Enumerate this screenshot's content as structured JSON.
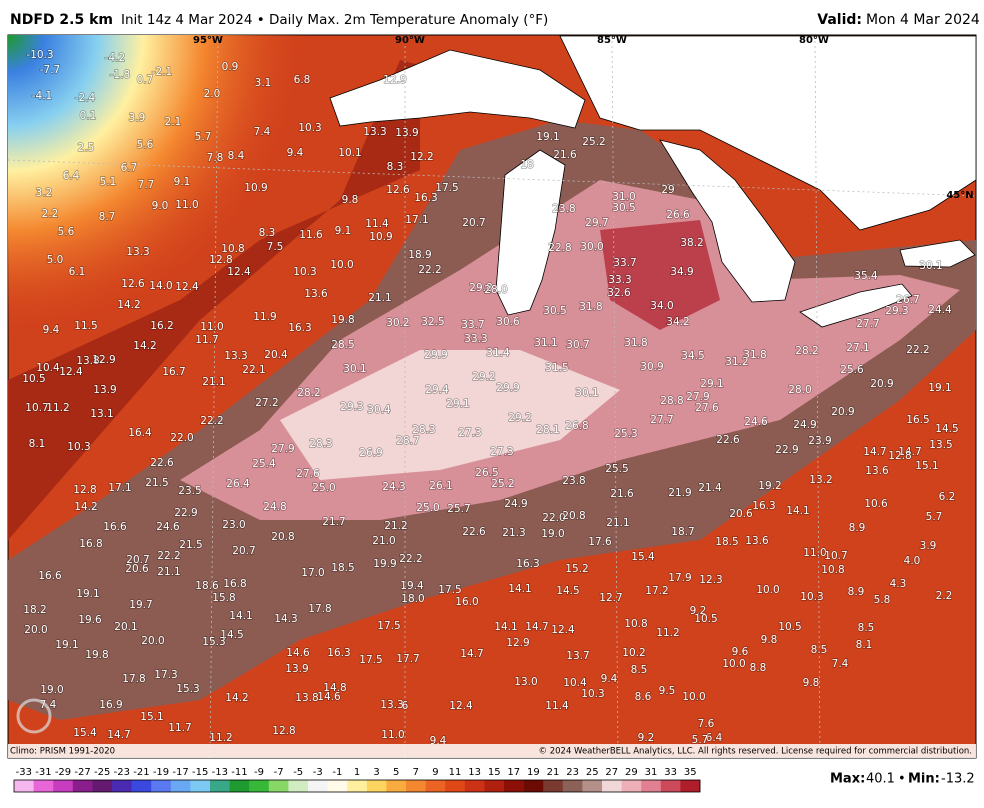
{
  "header": {
    "product": "NDFD 2.5 km",
    "description": "Init 14z 4 Mar 2024 • Daily Max. 2m Temperature Anomaly (°F)",
    "valid_label": "Valid:",
    "valid": "Mon 4 Mar 2024"
  },
  "map": {
    "lon_labels": [
      "95°W",
      "90°W",
      "85°W",
      "80°W"
    ],
    "lat_labels": [
      "45°N"
    ],
    "stations": [
      "-10.3",
      "-7.7",
      "-4.2",
      "-1.8",
      "0.7",
      "-2.1",
      "-4.1",
      "-2.4",
      "0.1",
      "3.9",
      "2.1",
      "2.5",
      "5.6",
      "5.7",
      "0.9",
      "2.0",
      "3.1",
      "6.8",
      "12.9",
      "7.4",
      "7.8",
      "8.4",
      "9.4",
      "10.3",
      "10.1",
      "13.3",
      "13.9",
      "12.2",
      "8.3",
      "6.4",
      "5.1",
      "6.7",
      "7.7",
      "9.1",
      "3.2",
      "2.2",
      "5.6",
      "8.7",
      "9.0",
      "11.0",
      "10.9",
      "9.8",
      "12.6",
      "16.3",
      "17.5",
      "20.7",
      "17.1",
      "11.4",
      "10.9",
      "9.1",
      "11.6",
      "8.3",
      "7.5",
      "10.8",
      "12.8",
      "12.4",
      "13.3",
      "5.0",
      "6.1",
      "12.6",
      "14.0",
      "12.4",
      "10.3",
      "10.0",
      "18.9",
      "22.2",
      "13.6",
      "21.1",
      "14.2",
      "9.4",
      "11.5",
      "16.2",
      "11.0",
      "11.7",
      "11.9",
      "16.3",
      "19.8",
      "30.2",
      "32.5",
      "33.7",
      "33.3",
      "29.8",
      "28.0",
      "30.6",
      "30.5",
      "31.8",
      "32.6",
      "34.0",
      "34.2",
      "33.3",
      "33.7",
      "34.9",
      "38.2",
      "30.0",
      "22.8",
      "29.7",
      "30.5",
      "31.0",
      "23.8",
      "26.6",
      "29",
      "25.2",
      "21.6",
      "19.1",
      "18",
      "35.4",
      "30.1",
      "26.7",
      "24.4",
      "29.3",
      "27.7",
      "27.1",
      "28.2",
      "22.2",
      "25.6",
      "20.9",
      "19.1",
      "28.0",
      "31.8",
      "31.2",
      "34.5",
      "31.8",
      "30.7",
      "31.1",
      "31.4",
      "31.5",
      "29.9",
      "28.5",
      "30.1",
      "29.2",
      "29.4",
      "29.9",
      "30.1",
      "30.9",
      "29.1",
      "27.9",
      "27.6",
      "28.8",
      "27.7",
      "29.1",
      "30.4",
      "29.3",
      "28.2",
      "27.2",
      "21.1",
      "22.1",
      "20.4",
      "13.3",
      "16.7",
      "14.2",
      "10.4",
      "12.4",
      "13.8",
      "12.9",
      "10.5",
      "13.9",
      "10.7",
      "11.2",
      "13.1",
      "22.2",
      "16.4",
      "22.0",
      "29.2",
      "28.1",
      "26.8",
      "27.3",
      "28.3",
      "28.7",
      "28.3",
      "27.9",
      "26.9",
      "27.3",
      "25.3",
      "22.6",
      "24.6",
      "24.9",
      "20.9",
      "23.9",
      "22.9",
      "16.5",
      "14.5",
      "14.7",
      "14.7",
      "12.8",
      "13.5",
      "13.6",
      "15.1",
      "8.1",
      "10.3",
      "22.6",
      "25.4",
      "25.5",
      "26.5",
      "25.2",
      "23.8",
      "13.2",
      "19.2",
      "12.8",
      "17.1",
      "21.5",
      "23.5",
      "26.4",
      "27.6",
      "25.0",
      "24.3",
      "26.1",
      "21.6",
      "21.9",
      "21.4",
      "24.9",
      "25.0",
      "25.7",
      "10.6",
      "6.2",
      "14.2",
      "22.9",
      "24.8",
      "16.3",
      "20.6",
      "14.1",
      "5.7",
      "16.6",
      "24.6",
      "23.0",
      "21.7",
      "21.2",
      "22.0",
      "20.8",
      "21.1",
      "8.9",
      "22.6",
      "21.3",
      "19.0",
      "18.7",
      "20.8",
      "21.0",
      "17.6",
      "18.5",
      "13.6",
      "3.9",
      "16.8",
      "21.5",
      "20.7",
      "11.0",
      "10.7",
      "4.0",
      "20.7",
      "22.2",
      "15.4",
      "17.0",
      "18.5",
      "19.9",
      "22.2",
      "16.3",
      "15.2",
      "10.8",
      "20.6",
      "21.1",
      "16.6",
      "17.9",
      "12.3",
      "4.3",
      "18.6",
      "16.8",
      "19.4",
      "17.5",
      "14.1",
      "14.5",
      "17.2",
      "10.0",
      "8.9",
      "5.8",
      "2.2",
      "19.1",
      "15.8",
      "18.0",
      "16.0",
      "12.7",
      "10.3",
      "19.7",
      "17.8",
      "18.2",
      "9.2",
      "19.6",
      "14.1",
      "14.3",
      "17.5",
      "10.8",
      "11.2",
      "10.5",
      "20.1",
      "14.1",
      "14.7",
      "12.4",
      "10.5",
      "8.5",
      "20.0",
      "14.5",
      "9.8",
      "20.0",
      "15.3",
      "19.1",
      "12.9",
      "8.1",
      "9.6",
      "14.6",
      "16.3",
      "14.7",
      "13.7",
      "10.2",
      "8.5",
      "19.8",
      "17.5",
      "17.7",
      "10.0",
      "8.8",
      "7.4",
      "13.9",
      "8.5",
      "17.8",
      "17.3",
      "13.0",
      "10.4",
      "9.4",
      "9.8",
      "19.0",
      "15.3",
      "14.8",
      "10.3",
      "14.2",
      "13.8",
      "14.6",
      "8.6",
      "9.5",
      "10.0",
      "7.4",
      "16.9",
      "13.3",
      "6",
      "12.4",
      "11.4",
      "15.1",
      "11.7",
      "7.6",
      "15.4",
      "14.7",
      "11.2",
      "12.8",
      "11.0",
      "9.4",
      "9.2",
      "6.4",
      "5.7"
    ]
  },
  "footer": {
    "climo": "Climo: PRISM 1991-2020",
    "copyright": "© 2024 WeatherBELL Analytics, LLC. All rights reserved. License required for commercial distribution.",
    "colorbar": {
      "ticks": [
        "-33",
        "-31",
        "-29",
        "-27",
        "-25",
        "-23",
        "-21",
        "-19",
        "-17",
        "-15",
        "-13",
        "-11",
        "-9",
        "-7",
        "-5",
        "-3",
        "-1",
        "1",
        "3",
        "5",
        "7",
        "9",
        "11",
        "13",
        "15",
        "17",
        "19",
        "21",
        "23",
        "25",
        "27",
        "29",
        "31",
        "33",
        "35"
      ],
      "colors": [
        "#f4b8ee",
        "#e866d8",
        "#c83cc0",
        "#8a1e8c",
        "#641a70",
        "#4a2ab0",
        "#3a48e0",
        "#5a78f0",
        "#6aa8f4",
        "#7ccaf4",
        "#38a888",
        "#1e9a30",
        "#38b838",
        "#88d868",
        "#d0ecc0",
        "#f4f4f4",
        "#fffbe8",
        "#fff0a0",
        "#fcd460",
        "#f8ac40",
        "#f48830",
        "#ec6424",
        "#e04818",
        "#cc3216",
        "#b0200e",
        "#8c1008",
        "#6c0a04",
        "#7a3a30",
        "#8c6258",
        "#b49088",
        "#f0d8d8",
        "#eeb0b8",
        "#e08090",
        "#cc4a5a",
        "#b01e2c"
      ]
    },
    "max_label": "Max:",
    "max": "40.1",
    "separator": "•",
    "min_label": "Min:",
    "min": "-13.2"
  }
}
